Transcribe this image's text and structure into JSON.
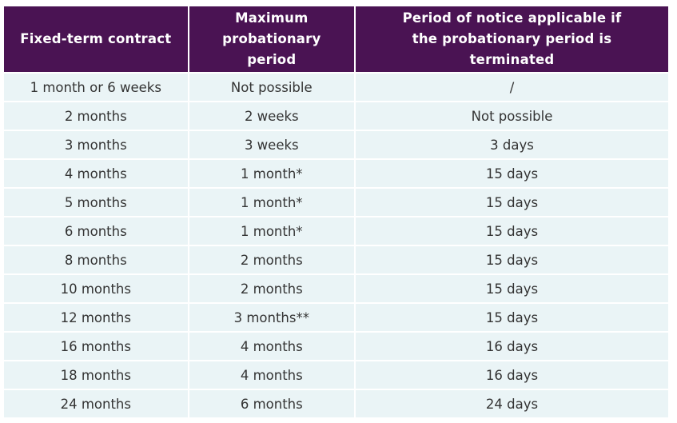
{
  "table": {
    "headers": [
      "Fixed-term contract",
      "Maximum probationary period",
      "Period of notice applicable if the probationary period is terminated"
    ],
    "rows": [
      [
        "1 month or 6 weeks",
        "Not possible",
        "/"
      ],
      [
        "2 months",
        "2 weeks",
        "Not possible"
      ],
      [
        "3 months",
        "3 weeks",
        "3 days"
      ],
      [
        "4 months",
        "1 month*",
        "15 days"
      ],
      [
        "5 months",
        "1 month*",
        "15 days"
      ],
      [
        "6 months",
        "1 month*",
        "15 days"
      ],
      [
        "8 months",
        "2 months",
        "15 days"
      ],
      [
        "10 months",
        "2 months",
        "15 days"
      ],
      [
        "12 months",
        "3 months**",
        "15 days"
      ],
      [
        "16 months",
        "4 months",
        "16 days"
      ],
      [
        "18 months",
        "4 months",
        "16 days"
      ],
      [
        "24 months",
        "6 months",
        "24 days"
      ]
    ]
  },
  "colors": {
    "header_bg": "#4a1353",
    "header_text": "#ffffff",
    "cell_bg": "#eaf4f6",
    "cell_text": "#333333"
  }
}
